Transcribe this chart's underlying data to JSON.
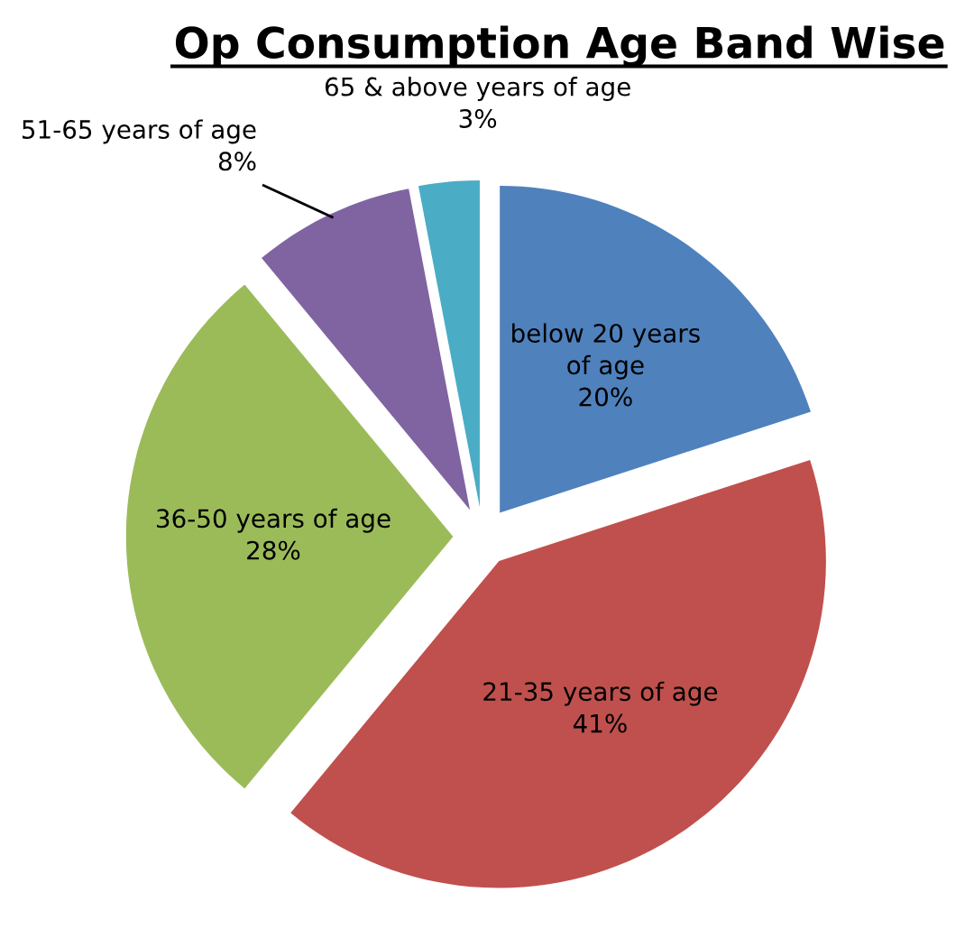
{
  "chart_data": {
    "type": "pie",
    "title": "Op Consumption Age Band Wise",
    "categories": [
      "below 20 years of age",
      "21-35 years of age",
      "36-50 years of age",
      "51-65 years of age",
      "65 & above years of age"
    ],
    "values": [
      20,
      41,
      28,
      8,
      3
    ],
    "colors": [
      "#4f81bd",
      "#c0504d",
      "#9bbb59",
      "#8064a2",
      "#4bacc6"
    ],
    "value_labels": [
      "20%",
      "41%",
      "28%",
      "8%",
      "3%"
    ],
    "legend": false
  }
}
